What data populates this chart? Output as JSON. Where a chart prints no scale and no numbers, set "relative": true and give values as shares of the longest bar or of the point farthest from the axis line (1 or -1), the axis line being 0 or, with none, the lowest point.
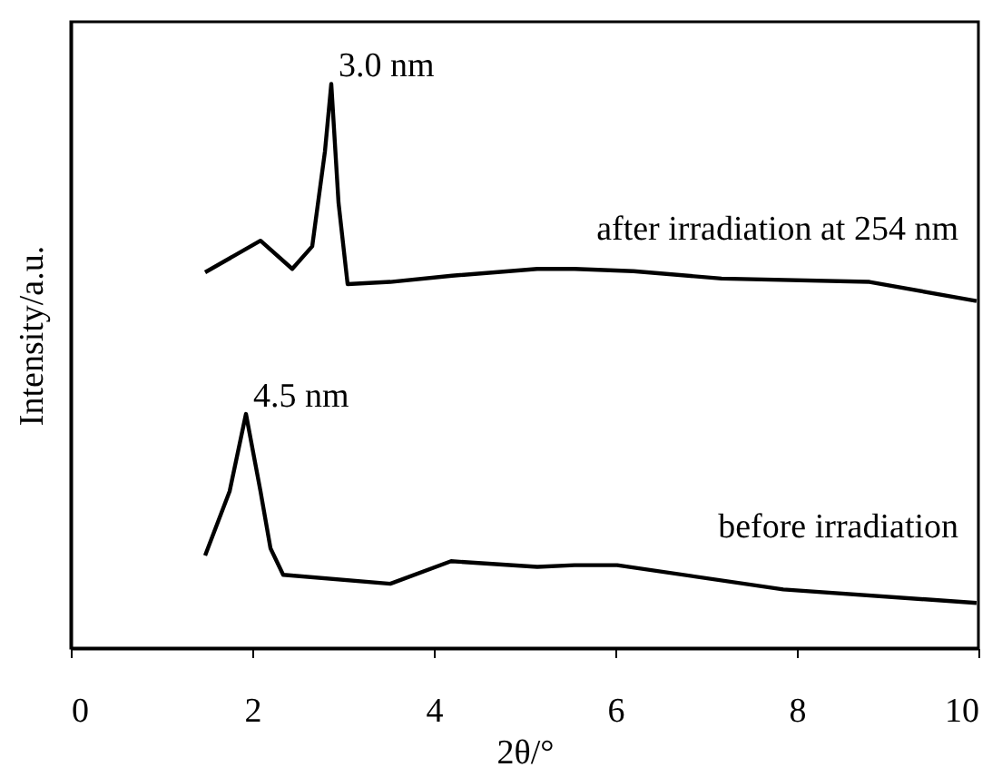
{
  "chart_data": {
    "type": "line",
    "relative": true,
    "xlabel": "2θ/°",
    "ylabel": "Intensity/a.u.",
    "xlim": [
      0,
      10
    ],
    "xticks": [
      0,
      2,
      4,
      6,
      8,
      10
    ],
    "grid": false,
    "marker": "none",
    "line_style": "solid",
    "tick_labels": "x",
    "series": [
      {
        "name": "after irradiation at 254 nm",
        "color": "#000000",
        "x": [
          1.48,
          2.09,
          2.44,
          2.66,
          2.8,
          2.87,
          2.95,
          3.05,
          3.52,
          4.2,
          5.14,
          5.55,
          6.2,
          7.17,
          8.8,
          9.98
        ],
        "values": [
          0.666,
          0.722,
          0.672,
          0.712,
          0.88,
          1.0,
          0.789,
          0.645,
          0.649,
          0.66,
          0.672,
          0.672,
          0.668,
          0.655,
          0.649,
          0.615
        ]
      },
      {
        "name": "before irradiation",
        "color": "#000000",
        "x": [
          1.48,
          1.75,
          1.93,
          2.09,
          2.2,
          2.34,
          3.52,
          4.19,
          5.14,
          5.55,
          6.02,
          7.85,
          9.98
        ],
        "values": [
          0.164,
          0.278,
          0.415,
          0.278,
          0.177,
          0.13,
          0.114,
          0.154,
          0.144,
          0.147,
          0.147,
          0.104,
          0.08
        ]
      }
    ],
    "annotations": [
      {
        "text": "3.0 nm",
        "x": 2.87,
        "y": 1.0
      },
      {
        "text": "4.5 nm",
        "x": 1.93,
        "y": 0.415
      }
    ]
  }
}
